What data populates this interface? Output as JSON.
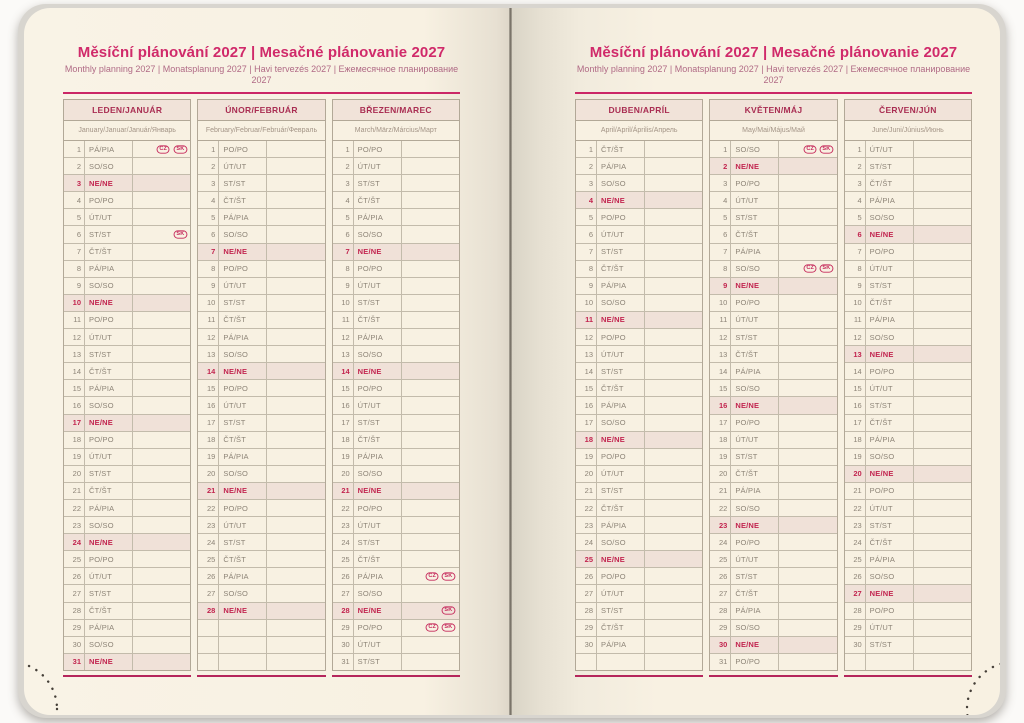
{
  "title": "Měsíční plánování 2027 | Mesačné plánovanie 2027",
  "subtitle": "Monthly planning 2027 | Monatsplanung 2027 | Havi tervezés 2027 | Ежемесячное планирование 2027",
  "colors": {
    "accent_magenta": "#cb2766",
    "holiday_red": "#c2254f",
    "page_cream": "#f8f1e2",
    "sunday_row_bg": "#f0e1d8",
    "header_band_bg": "#f1e3d9",
    "grid_border": "#b2a897",
    "weekday_text": "#8d8477"
  },
  "row_slots_per_month": 31,
  "months": [
    {
      "name": "LEDEN/JANUÁR",
      "languages": "January/Januar/Január/Январь",
      "days": [
        {
          "n": 1,
          "d": "PÁ/PIA",
          "b": [
            "CZ",
            "SK"
          ]
        },
        {
          "n": 2,
          "d": "SO/SO"
        },
        {
          "n": 3,
          "d": "NE/NE"
        },
        {
          "n": 4,
          "d": "PO/PO"
        },
        {
          "n": 5,
          "d": "ÚT/UT"
        },
        {
          "n": 6,
          "d": "ST/ST",
          "b": [
            "SK"
          ]
        },
        {
          "n": 7,
          "d": "ČT/ŠT"
        },
        {
          "n": 8,
          "d": "PÁ/PIA"
        },
        {
          "n": 9,
          "d": "SO/SO"
        },
        {
          "n": 10,
          "d": "NE/NE"
        },
        {
          "n": 11,
          "d": "PO/PO"
        },
        {
          "n": 12,
          "d": "ÚT/UT"
        },
        {
          "n": 13,
          "d": "ST/ST"
        },
        {
          "n": 14,
          "d": "ČT/ŠT"
        },
        {
          "n": 15,
          "d": "PÁ/PIA"
        },
        {
          "n": 16,
          "d": "SO/SO"
        },
        {
          "n": 17,
          "d": "NE/NE"
        },
        {
          "n": 18,
          "d": "PO/PO"
        },
        {
          "n": 19,
          "d": "ÚT/UT"
        },
        {
          "n": 20,
          "d": "ST/ST"
        },
        {
          "n": 21,
          "d": "ČT/ŠT"
        },
        {
          "n": 22,
          "d": "PÁ/PIA"
        },
        {
          "n": 23,
          "d": "SO/SO"
        },
        {
          "n": 24,
          "d": "NE/NE"
        },
        {
          "n": 25,
          "d": "PO/PO"
        },
        {
          "n": 26,
          "d": "ÚT/UT"
        },
        {
          "n": 27,
          "d": "ST/ST"
        },
        {
          "n": 28,
          "d": "ČT/ŠT"
        },
        {
          "n": 29,
          "d": "PÁ/PIA"
        },
        {
          "n": 30,
          "d": "SO/SO"
        },
        {
          "n": 31,
          "d": "NE/NE"
        }
      ]
    },
    {
      "name": "ÚNOR/FEBRUÁR",
      "languages": "February/Februar/Február/Февраль",
      "days": [
        {
          "n": 1,
          "d": "PO/PO"
        },
        {
          "n": 2,
          "d": "ÚT/UT"
        },
        {
          "n": 3,
          "d": "ST/ST"
        },
        {
          "n": 4,
          "d": "ČT/ŠT"
        },
        {
          "n": 5,
          "d": "PÁ/PIA"
        },
        {
          "n": 6,
          "d": "SO/SO"
        },
        {
          "n": 7,
          "d": "NE/NE"
        },
        {
          "n": 8,
          "d": "PO/PO"
        },
        {
          "n": 9,
          "d": "ÚT/UT"
        },
        {
          "n": 10,
          "d": "ST/ST"
        },
        {
          "n": 11,
          "d": "ČT/ŠT"
        },
        {
          "n": 12,
          "d": "PÁ/PIA"
        },
        {
          "n": 13,
          "d": "SO/SO"
        },
        {
          "n": 14,
          "d": "NE/NE"
        },
        {
          "n": 15,
          "d": "PO/PO"
        },
        {
          "n": 16,
          "d": "ÚT/UT"
        },
        {
          "n": 17,
          "d": "ST/ST"
        },
        {
          "n": 18,
          "d": "ČT/ŠT"
        },
        {
          "n": 19,
          "d": "PÁ/PIA"
        },
        {
          "n": 20,
          "d": "SO/SO"
        },
        {
          "n": 21,
          "d": "NE/NE"
        },
        {
          "n": 22,
          "d": "PO/PO"
        },
        {
          "n": 23,
          "d": "ÚT/UT"
        },
        {
          "n": 24,
          "d": "ST/ST"
        },
        {
          "n": 25,
          "d": "ČT/ŠT"
        },
        {
          "n": 26,
          "d": "PÁ/PIA"
        },
        {
          "n": 27,
          "d": "SO/SO"
        },
        {
          "n": 28,
          "d": "NE/NE"
        }
      ]
    },
    {
      "name": "BŘEZEN/MAREC",
      "languages": "March/März/Március/Март",
      "days": [
        {
          "n": 1,
          "d": "PO/PO"
        },
        {
          "n": 2,
          "d": "ÚT/UT"
        },
        {
          "n": 3,
          "d": "ST/ST"
        },
        {
          "n": 4,
          "d": "ČT/ŠT"
        },
        {
          "n": 5,
          "d": "PÁ/PIA"
        },
        {
          "n": 6,
          "d": "SO/SO"
        },
        {
          "n": 7,
          "d": "NE/NE"
        },
        {
          "n": 8,
          "d": "PO/PO"
        },
        {
          "n": 9,
          "d": "ÚT/UT"
        },
        {
          "n": 10,
          "d": "ST/ST"
        },
        {
          "n": 11,
          "d": "ČT/ŠT"
        },
        {
          "n": 12,
          "d": "PÁ/PIA"
        },
        {
          "n": 13,
          "d": "SO/SO"
        },
        {
          "n": 14,
          "d": "NE/NE"
        },
        {
          "n": 15,
          "d": "PO/PO"
        },
        {
          "n": 16,
          "d": "ÚT/UT"
        },
        {
          "n": 17,
          "d": "ST/ST"
        },
        {
          "n": 18,
          "d": "ČT/ŠT"
        },
        {
          "n": 19,
          "d": "PÁ/PIA"
        },
        {
          "n": 20,
          "d": "SO/SO"
        },
        {
          "n": 21,
          "d": "NE/NE"
        },
        {
          "n": 22,
          "d": "PO/PO"
        },
        {
          "n": 23,
          "d": "ÚT/UT"
        },
        {
          "n": 24,
          "d": "ST/ST"
        },
        {
          "n": 25,
          "d": "ČT/ŠT"
        },
        {
          "n": 26,
          "d": "PÁ/PIA",
          "b": [
            "CZ",
            "SK"
          ]
        },
        {
          "n": 27,
          "d": "SO/SO"
        },
        {
          "n": 28,
          "d": "NE/NE",
          "b": [
            "SK"
          ]
        },
        {
          "n": 29,
          "d": "PO/PO",
          "b": [
            "CZ",
            "SK"
          ]
        },
        {
          "n": 30,
          "d": "ÚT/UT"
        },
        {
          "n": 31,
          "d": "ST/ST"
        }
      ]
    },
    {
      "name": "DUBEN/APRÍL",
      "languages": "April/April/Április/Апрель",
      "days": [
        {
          "n": 1,
          "d": "ČT/ŠT"
        },
        {
          "n": 2,
          "d": "PÁ/PIA"
        },
        {
          "n": 3,
          "d": "SO/SO"
        },
        {
          "n": 4,
          "d": "NE/NE"
        },
        {
          "n": 5,
          "d": "PO/PO"
        },
        {
          "n": 6,
          "d": "ÚT/UT"
        },
        {
          "n": 7,
          "d": "ST/ST"
        },
        {
          "n": 8,
          "d": "ČT/ŠT"
        },
        {
          "n": 9,
          "d": "PÁ/PIA"
        },
        {
          "n": 10,
          "d": "SO/SO"
        },
        {
          "n": 11,
          "d": "NE/NE"
        },
        {
          "n": 12,
          "d": "PO/PO"
        },
        {
          "n": 13,
          "d": "ÚT/UT"
        },
        {
          "n": 14,
          "d": "ST/ST"
        },
        {
          "n": 15,
          "d": "ČT/ŠT"
        },
        {
          "n": 16,
          "d": "PÁ/PIA"
        },
        {
          "n": 17,
          "d": "SO/SO"
        },
        {
          "n": 18,
          "d": "NE/NE"
        },
        {
          "n": 19,
          "d": "PO/PO"
        },
        {
          "n": 20,
          "d": "ÚT/UT"
        },
        {
          "n": 21,
          "d": "ST/ST"
        },
        {
          "n": 22,
          "d": "ČT/ŠT"
        },
        {
          "n": 23,
          "d": "PÁ/PIA"
        },
        {
          "n": 24,
          "d": "SO/SO"
        },
        {
          "n": 25,
          "d": "NE/NE"
        },
        {
          "n": 26,
          "d": "PO/PO"
        },
        {
          "n": 27,
          "d": "ÚT/UT"
        },
        {
          "n": 28,
          "d": "ST/ST"
        },
        {
          "n": 29,
          "d": "ČT/ŠT"
        },
        {
          "n": 30,
          "d": "PÁ/PIA"
        }
      ]
    },
    {
      "name": "KVĚTEN/MÁJ",
      "languages": "May/Mai/Május/Май",
      "days": [
        {
          "n": 1,
          "d": "SO/SO",
          "b": [
            "CZ",
            "SK"
          ]
        },
        {
          "n": 2,
          "d": "NE/NE"
        },
        {
          "n": 3,
          "d": "PO/PO"
        },
        {
          "n": 4,
          "d": "ÚT/UT"
        },
        {
          "n": 5,
          "d": "ST/ST"
        },
        {
          "n": 6,
          "d": "ČT/ŠT"
        },
        {
          "n": 7,
          "d": "PÁ/PIA"
        },
        {
          "n": 8,
          "d": "SO/SO",
          "b": [
            "CZ",
            "SK"
          ]
        },
        {
          "n": 9,
          "d": "NE/NE"
        },
        {
          "n": 10,
          "d": "PO/PO"
        },
        {
          "n": 11,
          "d": "ÚT/UT"
        },
        {
          "n": 12,
          "d": "ST/ST"
        },
        {
          "n": 13,
          "d": "ČT/ŠT"
        },
        {
          "n": 14,
          "d": "PÁ/PIA"
        },
        {
          "n": 15,
          "d": "SO/SO"
        },
        {
          "n": 16,
          "d": "NE/NE"
        },
        {
          "n": 17,
          "d": "PO/PO"
        },
        {
          "n": 18,
          "d": "ÚT/UT"
        },
        {
          "n": 19,
          "d": "ST/ST"
        },
        {
          "n": 20,
          "d": "ČT/ŠT"
        },
        {
          "n": 21,
          "d": "PÁ/PIA"
        },
        {
          "n": 22,
          "d": "SO/SO"
        },
        {
          "n": 23,
          "d": "NE/NE"
        },
        {
          "n": 24,
          "d": "PO/PO"
        },
        {
          "n": 25,
          "d": "ÚT/UT"
        },
        {
          "n": 26,
          "d": "ST/ST"
        },
        {
          "n": 27,
          "d": "ČT/ŠT"
        },
        {
          "n": 28,
          "d": "PÁ/PIA"
        },
        {
          "n": 29,
          "d": "SO/SO"
        },
        {
          "n": 30,
          "d": "NE/NE"
        },
        {
          "n": 31,
          "d": "PO/PO"
        }
      ]
    },
    {
      "name": "ČERVEN/JÚN",
      "languages": "June/Juni/Június/Июнь",
      "days": [
        {
          "n": 1,
          "d": "ÚT/UT"
        },
        {
          "n": 2,
          "d": "ST/ST"
        },
        {
          "n": 3,
          "d": "ČT/ŠT"
        },
        {
          "n": 4,
          "d": "PÁ/PIA"
        },
        {
          "n": 5,
          "d": "SO/SO"
        },
        {
          "n": 6,
          "d": "NE/NE"
        },
        {
          "n": 7,
          "d": "PO/PO"
        },
        {
          "n": 8,
          "d": "ÚT/UT"
        },
        {
          "n": 9,
          "d": "ST/ST"
        },
        {
          "n": 10,
          "d": "ČT/ŠT"
        },
        {
          "n": 11,
          "d": "PÁ/PIA"
        },
        {
          "n": 12,
          "d": "SO/SO"
        },
        {
          "n": 13,
          "d": "NE/NE"
        },
        {
          "n": 14,
          "d": "PO/PO"
        },
        {
          "n": 15,
          "d": "ÚT/UT"
        },
        {
          "n": 16,
          "d": "ST/ST"
        },
        {
          "n": 17,
          "d": "ČT/ŠT"
        },
        {
          "n": 18,
          "d": "PÁ/PIA"
        },
        {
          "n": 19,
          "d": "SO/SO"
        },
        {
          "n": 20,
          "d": "NE/NE"
        },
        {
          "n": 21,
          "d": "PO/PO"
        },
        {
          "n": 22,
          "d": "ÚT/UT"
        },
        {
          "n": 23,
          "d": "ST/ST"
        },
        {
          "n": 24,
          "d": "ČT/ŠT"
        },
        {
          "n": 25,
          "d": "PÁ/PIA"
        },
        {
          "n": 26,
          "d": "SO/SO"
        },
        {
          "n": 27,
          "d": "NE/NE"
        },
        {
          "n": 28,
          "d": "PO/PO"
        },
        {
          "n": 29,
          "d": "ÚT/UT"
        },
        {
          "n": 30,
          "d": "ST/ST"
        }
      ]
    }
  ]
}
